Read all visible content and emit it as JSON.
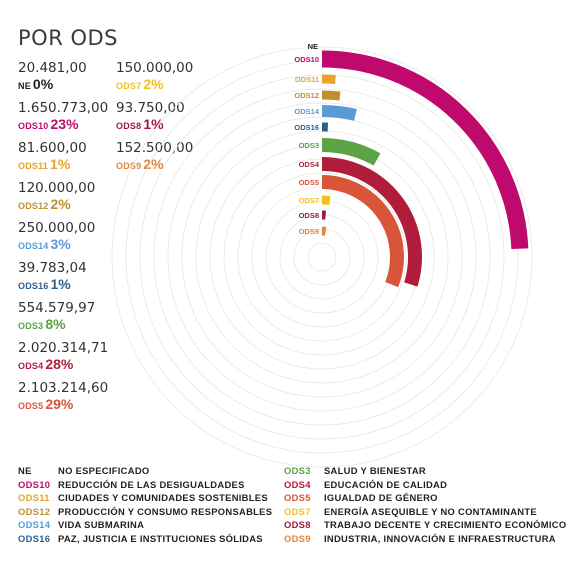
{
  "title": "POR ODS",
  "colors": {
    "NE": "#231f20",
    "ODS10": "#c0096c",
    "ODS11": "#e6a52a",
    "ODS12": "#c08f2d",
    "ODS14": "#5b9bd5",
    "ODS16": "#2d5f8e",
    "ODS3": "#5ba344",
    "ODS4": "#b01d3a",
    "ODS5": "#d9553a",
    "ODS7": "#f2c21b",
    "ODS8": "#9d1b40",
    "ODS9": "#e2853c"
  },
  "stats": [
    {
      "code": "NE",
      "amount": "20.481,00",
      "pct": "0%"
    },
    {
      "code": "ODS10",
      "amount": "1.650.773,00",
      "pct": "23%"
    },
    {
      "code": "ODS11",
      "amount": "81.600,00",
      "pct": "1%"
    },
    {
      "code": "ODS12",
      "amount": "120.000,00",
      "pct": "2%"
    },
    {
      "code": "ODS14",
      "amount": "250.000,00",
      "pct": "3%"
    },
    {
      "code": "ODS16",
      "amount": "39.783,04",
      "pct": "1%"
    },
    {
      "code": "ODS3",
      "amount": "554.579,97",
      "pct": "8%"
    },
    {
      "code": "ODS4",
      "amount": "2.020.314,71",
      "pct": "28%"
    },
    {
      "code": "ODS5",
      "amount": "2.103.214,60",
      "pct": "29%"
    },
    {
      "code": "ODS7",
      "amount": "150.000,00",
      "pct": "2%"
    },
    {
      "code": "ODS8",
      "amount": "93.750,00",
      "pct": "1%"
    },
    {
      "code": "ODS9",
      "amount": "152.500,00",
      "pct": "2%"
    }
  ],
  "chart_data": {
    "type": "radial-bar",
    "categories": [
      "NE",
      "ODS10",
      "ODS11",
      "ODS12",
      "ODS14",
      "ODS16",
      "ODS3",
      "ODS4",
      "ODS5",
      "ODS7",
      "ODS8",
      "ODS9"
    ],
    "values": [
      20481.0,
      1650773.0,
      81600.0,
      120000.0,
      250000.0,
      39783.04,
      554579.97,
      2020314.71,
      2103214.6,
      150000.0,
      93750.0,
      152500.0
    ],
    "percentages": [
      0,
      23,
      1,
      2,
      3,
      1,
      8,
      28,
      29,
      2,
      1,
      2
    ],
    "grid": true
  },
  "legend": {
    "left": [
      {
        "code": "NE",
        "desc": "NO ESPECIFICADO"
      },
      {
        "code": "ODS10",
        "desc": "REDUCCIÓN DE LAS DESIGUALDADES"
      },
      {
        "code": "ODS11",
        "desc": "CIUDADES Y COMUNIDADES SOSTENIBLES"
      },
      {
        "code": "ODS12",
        "desc": "PRODUCCIÓN Y CONSUMO RESPONSABLES"
      },
      {
        "code": "ODS14",
        "desc": "VIDA SUBMARINA"
      },
      {
        "code": "ODS16",
        "desc": "PAZ, JUSTICIA E INSTITUCIONES SÓLIDAS"
      }
    ],
    "right": [
      {
        "code": "ODS3",
        "desc": "SALUD Y BIENESTAR"
      },
      {
        "code": "ODS4",
        "desc": "EDUCACIÓN DE CALIDAD"
      },
      {
        "code": "ODS5",
        "desc": "IGUALDAD DE GÉNERO"
      },
      {
        "code": "ODS7",
        "desc": "ENERGÍA ASEQUIBLE Y NO CONTAMINANTE"
      },
      {
        "code": "ODS8",
        "desc": "TRABAJO DECENTE Y CRECIMIENTO ECONÓMICO"
      },
      {
        "code": "ODS9",
        "desc": "INDUSTRIA, INNOVACIÓN E INFRAESTRUCTURA"
      }
    ]
  }
}
